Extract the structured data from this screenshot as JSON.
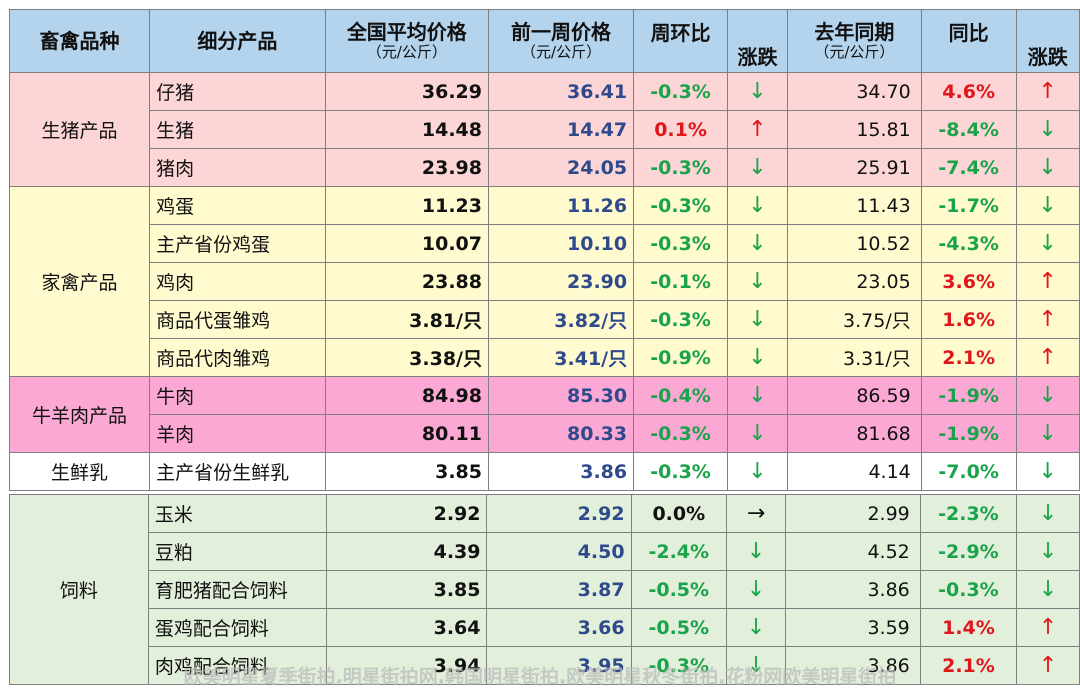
{
  "header": {
    "category": "畜禽品种",
    "product": "细分产品",
    "current_line1": "全国平均价格",
    "current_line2": "（元/公斤）",
    "prev_line1": "前一周价格",
    "prev_line2": "（元/公斤）",
    "wow": "周环比",
    "wow_trend": "涨跌",
    "ly_line1": "去年同期",
    "ly_line2": "（元/公斤）",
    "yoy": "同比",
    "yoy_trend": "涨跌"
  },
  "groups": [
    {
      "category": "生猪产品",
      "theme": "pig",
      "rows": [
        {
          "product": "仔猪",
          "current": "36.29",
          "prev": "36.41",
          "wow": "-0.3%",
          "wow_dir": "down",
          "wow_arrow": "↓",
          "ly": "34.70",
          "yoy": "4.6%",
          "yoy_dir": "up",
          "yoy_arrow": "↑"
        },
        {
          "product": "生猪",
          "current": "14.48",
          "prev": "14.47",
          "wow": "0.1%",
          "wow_dir": "up",
          "wow_arrow": "↑",
          "ly": "15.81",
          "yoy": "-8.4%",
          "yoy_dir": "down",
          "yoy_arrow": "↓"
        },
        {
          "product": "猪肉",
          "current": "23.98",
          "prev": "24.05",
          "wow": "-0.3%",
          "wow_dir": "down",
          "wow_arrow": "↓",
          "ly": "25.91",
          "yoy": "-7.4%",
          "yoy_dir": "down",
          "yoy_arrow": "↓"
        }
      ]
    },
    {
      "category": "家禽产品",
      "theme": "poultry",
      "rows": [
        {
          "product": "鸡蛋",
          "current": "11.23",
          "prev": "11.26",
          "wow": "-0.3%",
          "wow_dir": "down",
          "wow_arrow": "↓",
          "ly": "11.43",
          "yoy": "-1.7%",
          "yoy_dir": "down",
          "yoy_arrow": "↓"
        },
        {
          "product": "主产省份鸡蛋",
          "current": "10.07",
          "prev": "10.10",
          "wow": "-0.3%",
          "wow_dir": "down",
          "wow_arrow": "↓",
          "ly": "10.52",
          "yoy": "-4.3%",
          "yoy_dir": "down",
          "yoy_arrow": "↓"
        },
        {
          "product": "鸡肉",
          "current": "23.88",
          "prev": "23.90",
          "wow": "-0.1%",
          "wow_dir": "down",
          "wow_arrow": "↓",
          "ly": "23.05",
          "yoy": "3.6%",
          "yoy_dir": "up",
          "yoy_arrow": "↑"
        },
        {
          "product": "商品代蛋雏鸡",
          "current": "3.81/只",
          "prev": "3.82/只",
          "wow": "-0.3%",
          "wow_dir": "down",
          "wow_arrow": "↓",
          "ly": "3.75/只",
          "yoy": "1.6%",
          "yoy_dir": "up",
          "yoy_arrow": "↑"
        },
        {
          "product": "商品代肉雏鸡",
          "current": "3.38/只",
          "prev": "3.41/只",
          "wow": "-0.9%",
          "wow_dir": "down",
          "wow_arrow": "↓",
          "ly": "3.31/只",
          "yoy": "2.1%",
          "yoy_dir": "up",
          "yoy_arrow": "↑"
        }
      ]
    },
    {
      "category": "牛羊肉产品",
      "theme": "beef",
      "rows": [
        {
          "product": "牛肉",
          "current": "84.98",
          "prev": "85.30",
          "wow": "-0.4%",
          "wow_dir": "down",
          "wow_arrow": "↓",
          "ly": "86.59",
          "yoy": "-1.9%",
          "yoy_dir": "down",
          "yoy_arrow": "↓"
        },
        {
          "product": "羊肉",
          "current": "80.11",
          "prev": "80.33",
          "wow": "-0.3%",
          "wow_dir": "down",
          "wow_arrow": "↓",
          "ly": "81.68",
          "yoy": "-1.9%",
          "yoy_dir": "down",
          "yoy_arrow": "↓"
        }
      ]
    },
    {
      "category": "生鲜乳",
      "theme": "milk",
      "rows": [
        {
          "product": "主产省份生鲜乳",
          "current": "3.85",
          "prev": "3.86",
          "wow": "-0.3%",
          "wow_dir": "down",
          "wow_arrow": "↓",
          "ly": "4.14",
          "yoy": "-7.0%",
          "yoy_dir": "down",
          "yoy_arrow": "↓"
        }
      ]
    }
  ],
  "feed_group": {
    "category": "饲料",
    "theme": "feed",
    "rows": [
      {
        "product": "玉米",
        "current": "2.92",
        "prev": "2.92",
        "wow": "0.0%",
        "wow_dir": "flat",
        "wow_arrow": "→",
        "ly": "2.99",
        "yoy": "-2.3%",
        "yoy_dir": "down",
        "yoy_arrow": "↓"
      },
      {
        "product": "豆粕",
        "current": "4.39",
        "prev": "4.50",
        "wow": "-2.4%",
        "wow_dir": "down",
        "wow_arrow": "↓",
        "ly": "4.52",
        "yoy": "-2.9%",
        "yoy_dir": "down",
        "yoy_arrow": "↓"
      },
      {
        "product": "育肥猪配合饲料",
        "current": "3.85",
        "prev": "3.87",
        "wow": "-0.5%",
        "wow_dir": "down",
        "wow_arrow": "↓",
        "ly": "3.86",
        "yoy": "-0.3%",
        "yoy_dir": "down",
        "yoy_arrow": "↓"
      },
      {
        "product": "蛋鸡配合饲料",
        "current": "3.64",
        "prev": "3.66",
        "wow": "-0.5%",
        "wow_dir": "down",
        "wow_arrow": "↓",
        "ly": "3.59",
        "yoy": "1.4%",
        "yoy_dir": "up",
        "yoy_arrow": "↑"
      },
      {
        "product": "肉鸡配合饲料",
        "current": "3.94",
        "prev": "3.95",
        "wow": "-0.3%",
        "wow_dir": "down",
        "wow_arrow": "↓",
        "ly": "3.86",
        "yoy": "2.1%",
        "yoy_dir": "up",
        "yoy_arrow": "↑"
      }
    ]
  },
  "watermark": "欧美明星夏季街拍,明星街拍网,韩国明星街拍,欧美明星秋冬街拍,花粉网欧美明星街拍"
}
